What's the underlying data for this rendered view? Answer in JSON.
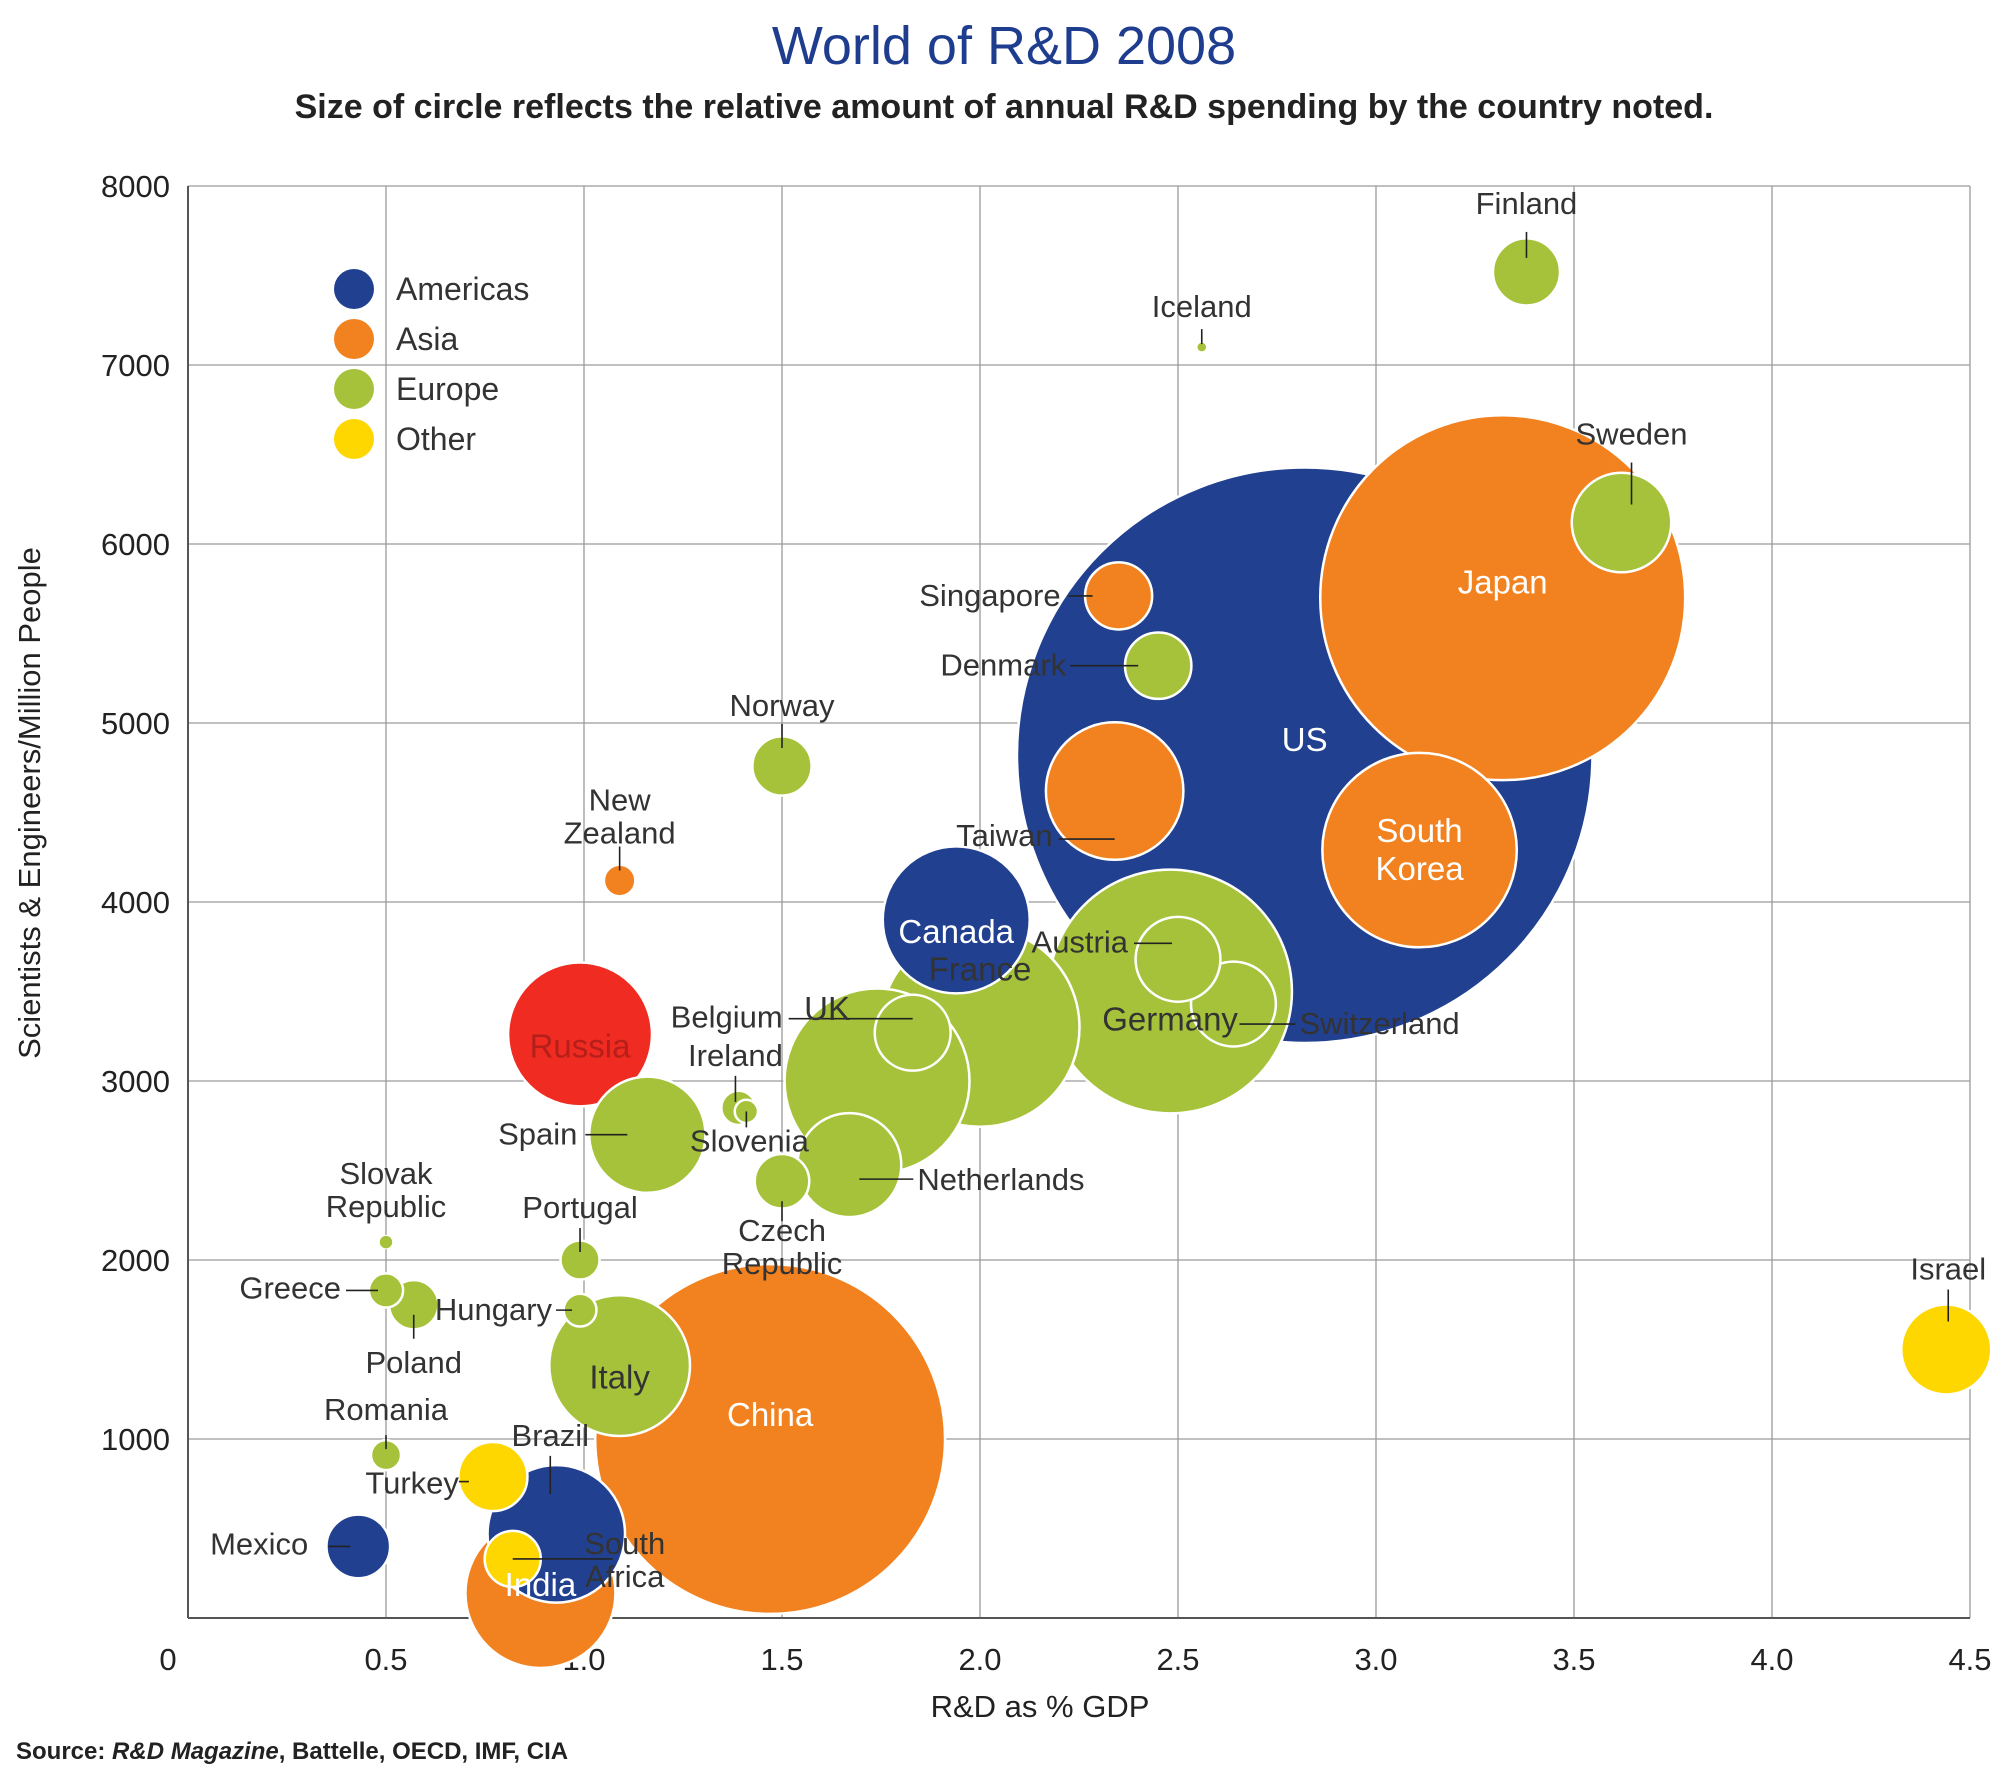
{
  "title": "World of R&D 2008",
  "subtitle": "Size of circle reflects the relative amount of annual R&D spending by the country noted.",
  "source": {
    "prefix": "Source: ",
    "italic": "R&D Magazine",
    "rest": ", Battelle, OECD, IMF, CIA"
  },
  "colors": {
    "Americas": "#21408f",
    "Asia": "#f28220",
    "Europe": "#a6c23a",
    "Other": "#fed700",
    "Russia": "#ef2b22"
  },
  "chart_data": {
    "type": "scatter",
    "title": "World of R&D 2008",
    "subtitle": "Size of circle reflects the relative amount of annual R&D spending by the country noted.",
    "xlabel": "R&D as % GDP",
    "ylabel": "Scientists & Engineers/Million People",
    "xlim": [
      0,
      4.5
    ],
    "ylim": [
      0,
      8000
    ],
    "x_ticks": [
      "0",
      "0.5",
      "1.0",
      "1.5",
      "2.0",
      "2.5",
      "3.0",
      "3.5",
      "4.0",
      "4.5"
    ],
    "y_ticks": [
      "0",
      "1000",
      "2000",
      "3000",
      "4000",
      "5000",
      "6000",
      "7000",
      "8000"
    ],
    "grid": true,
    "legend": {
      "position": "top-left",
      "entries": [
        "Americas",
        "Asia",
        "Europe",
        "Other"
      ]
    },
    "size_meaning": "relative amount of annual R&D spending",
    "points": [
      {
        "name": "US",
        "x": 2.82,
        "y": 4820,
        "region": "Americas",
        "size": 368.0
      },
      {
        "name": "Japan",
        "x": 3.32,
        "y": 5700,
        "region": "Asia",
        "size": 148.0
      },
      {
        "name": "China",
        "x": 1.47,
        "y": 1000,
        "region": "Asia",
        "size": 136.0
      },
      {
        "name": "Germany",
        "x": 2.48,
        "y": 3500,
        "region": "Europe",
        "size": 66.0
      },
      {
        "name": "France",
        "x": 2.0,
        "y": 3300,
        "region": "Europe",
        "size": 44.0
      },
      {
        "name": "South Korea",
        "x": 3.11,
        "y": 4290,
        "region": "Asia",
        "size": 42.0
      },
      {
        "name": "UK",
        "x": 1.74,
        "y": 3000,
        "region": "Europe",
        "size": 38.0
      },
      {
        "name": "India",
        "x": 0.89,
        "y": 140,
        "region": "Asia",
        "size": 25.0
      },
      {
        "name": "Canada",
        "x": 1.94,
        "y": 3900,
        "region": "Americas",
        "size": 24.0
      },
      {
        "name": "Russia",
        "x": 0.99,
        "y": 3260,
        "region": "Other",
        "size": 23.0
      },
      {
        "name": "Italy",
        "x": 1.09,
        "y": 1410,
        "region": "Europe",
        "size": 22.0
      },
      {
        "name": "Brazil",
        "x": 0.93,
        "y": 470,
        "region": "Americas",
        "size": 21.0
      },
      {
        "name": "Spain",
        "x": 1.16,
        "y": 2700,
        "region": "Europe",
        "size": 15.0
      },
      {
        "name": "Taiwan",
        "x": 2.34,
        "y": 4620,
        "region": "Asia",
        "size": 21.0
      },
      {
        "name": "Netherlands",
        "x": 1.67,
        "y": 2530,
        "region": "Europe",
        "size": 12.0
      },
      {
        "name": "Sweden",
        "x": 3.62,
        "y": 6120,
        "region": "Europe",
        "size": 11.0
      },
      {
        "name": "Switzerland",
        "x": 2.64,
        "y": 3430,
        "region": "Europe",
        "size": 8.0
      },
      {
        "name": "Austria",
        "x": 2.5,
        "y": 3680,
        "region": "Europe",
        "size": 8.0
      },
      {
        "name": "Belgium",
        "x": 1.83,
        "y": 3270,
        "region": "Europe",
        "size": 6.4
      },
      {
        "name": "Israel",
        "x": 4.44,
        "y": 1500,
        "region": "Other",
        "size": 9.0
      },
      {
        "name": "Turkey",
        "x": 0.77,
        "y": 790,
        "region": "Other",
        "size": 5.3
      },
      {
        "name": "South Africa",
        "x": 0.82,
        "y": 330,
        "region": "Other",
        "size": 3.5
      },
      {
        "name": "Finland",
        "x": 3.38,
        "y": 7520,
        "region": "Europe",
        "size": 5.0
      },
      {
        "name": "Denmark",
        "x": 2.45,
        "y": 5320,
        "region": "Europe",
        "size": 4.9
      },
      {
        "name": "Singapore",
        "x": 2.35,
        "y": 5710,
        "region": "Asia",
        "size": 5.0
      },
      {
        "name": "Norway",
        "x": 1.5,
        "y": 4760,
        "region": "Europe",
        "size": 3.9
      },
      {
        "name": "Mexico",
        "x": 0.43,
        "y": 400,
        "region": "Americas",
        "size": 4.5
      },
      {
        "name": "Czech Republic",
        "x": 1.5,
        "y": 2440,
        "region": "Europe",
        "size": 3.3
      },
      {
        "name": "Poland",
        "x": 0.57,
        "y": 1750,
        "region": "Europe",
        "size": 2.7
      },
      {
        "name": "Ireland",
        "x": 1.39,
        "y": 2850,
        "region": "Europe",
        "size": 1.3
      },
      {
        "name": "Portugal",
        "x": 0.99,
        "y": 2000,
        "region": "Europe",
        "size": 1.7
      },
      {
        "name": "Greece",
        "x": 0.5,
        "y": 1830,
        "region": "Europe",
        "size": 1.3
      },
      {
        "name": "Hungary",
        "x": 0.99,
        "y": 1720,
        "region": "Europe",
        "size": 1.2
      },
      {
        "name": "Romania",
        "x": 0.5,
        "y": 910,
        "region": "Europe",
        "size": 1.0
      },
      {
        "name": "New Zealand",
        "x": 1.09,
        "y": 4120,
        "region": "Asia",
        "size": 1.1
      },
      {
        "name": "Slovenia",
        "x": 1.41,
        "y": 2830,
        "region": "Europe",
        "size": 0.6
      },
      {
        "name": "Slovak Republic",
        "x": 0.5,
        "y": 2100,
        "region": "Europe",
        "size": 0.2
      },
      {
        "name": "Iceland",
        "x": 2.56,
        "y": 7100,
        "region": "Europe",
        "size": 0.1
      }
    ]
  }
}
